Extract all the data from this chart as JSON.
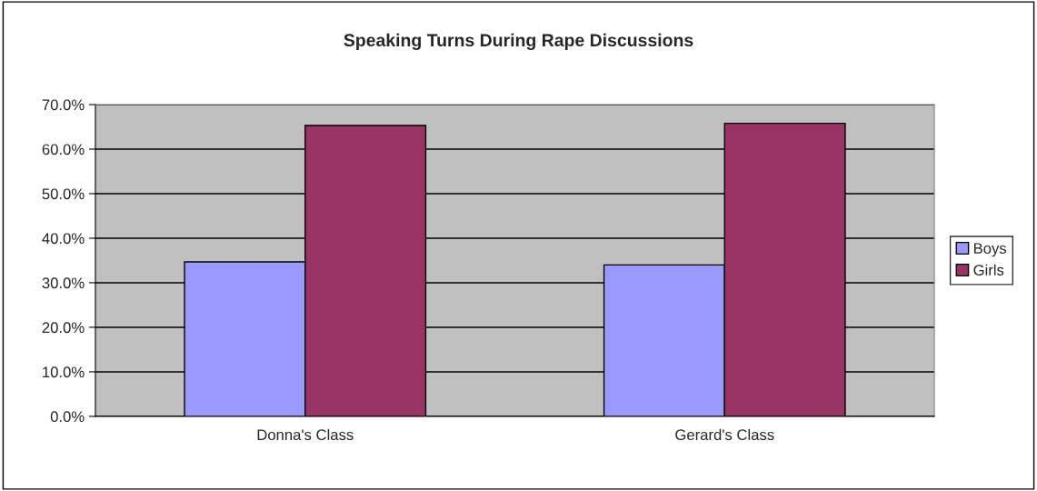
{
  "chart_data": {
    "type": "bar",
    "title": "Speaking Turns During Rape Discussions",
    "categories": [
      "Donna's Class",
      "Gerard's Class"
    ],
    "series": [
      {
        "name": "Boys",
        "color": "#9999ff",
        "values": [
          34.7,
          34.0
        ]
      },
      {
        "name": "Girls",
        "color": "#993366",
        "values": [
          65.3,
          65.8
        ]
      }
    ],
    "ylim": [
      0,
      70
    ],
    "yticks": [
      {
        "value": 0,
        "label": "0.0%"
      },
      {
        "value": 10,
        "label": "10.0%"
      },
      {
        "value": 20,
        "label": "20.0%"
      },
      {
        "value": 30,
        "label": "30.0%"
      },
      {
        "value": 40,
        "label": "40.0%"
      },
      {
        "value": 50,
        "label": "50.0%"
      },
      {
        "value": 60,
        "label": "60.0%"
      },
      {
        "value": 70,
        "label": "70.0%"
      }
    ],
    "grid": "y",
    "legend": "right"
  }
}
